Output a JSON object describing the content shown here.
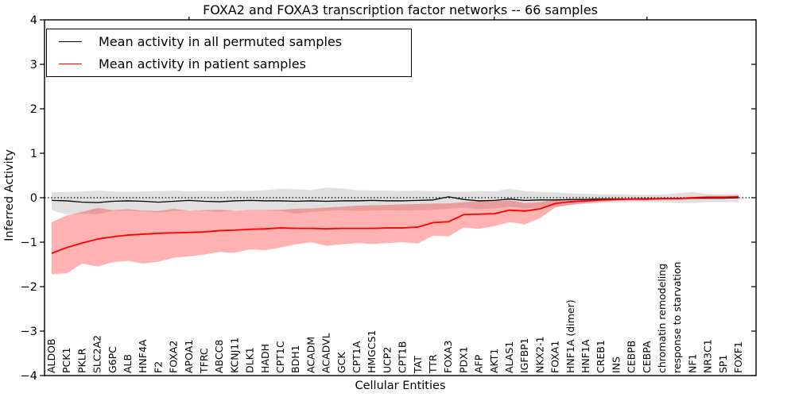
{
  "chart_data": {
    "type": "line",
    "title": "FOXA2 and FOXA3 transcription factor networks -- 66 samples",
    "xlabel": "Cellular Entities",
    "ylabel": "Inferred Activity",
    "ylim": [
      -4,
      4
    ],
    "grid": false,
    "legend_position": "upper left",
    "zero_line": {
      "value": 0,
      "style": "dotted",
      "color": "#000000"
    },
    "yticks": [
      "4",
      "3",
      "2",
      "1",
      "0",
      "−1",
      "−2",
      "−3",
      "−4"
    ],
    "ytick_values": [
      4,
      3,
      2,
      1,
      0,
      -1,
      -2,
      -3,
      -4
    ],
    "categories": [
      "ALDOB",
      "PCK1",
      "PKLR",
      "SLC2A2",
      "G6PC",
      "ALB",
      "HNF4A",
      "F2",
      "FOXA2",
      "APOA1",
      "TFRC",
      "ABCC8",
      "KCNJ11",
      "DLK1",
      "HADH",
      "CPT1C",
      "BDH1",
      "ACADM",
      "ACADVL",
      "GCK",
      "CPT1A",
      "HMGCS1",
      "UCP2",
      "CPT1B",
      "TAT",
      "TTR",
      "FOXA3",
      "PDX1",
      "AFP",
      "AKT1",
      "ALAS1",
      "IGFBP1",
      "NKX2-1",
      "FOXA1",
      "HNF1A (dimer)",
      "HNF1A",
      "CREB1",
      "INS",
      "CEBPB",
      "CEBPA",
      "chromatin remodeling",
      "response to starvation",
      "NF1",
      "NR3C1",
      "SP1",
      "FOXF1"
    ],
    "series": [
      {
        "name": "Mean activity in all permuted samples",
        "color": "#000000",
        "line_width": 1.3,
        "values": [
          -0.06,
          -0.07,
          -0.1,
          -0.11,
          -0.08,
          -0.07,
          -0.08,
          -0.1,
          -0.08,
          -0.06,
          -0.08,
          -0.09,
          -0.07,
          -0.06,
          -0.07,
          -0.07,
          -0.08,
          -0.07,
          -0.08,
          -0.07,
          -0.07,
          -0.06,
          -0.07,
          -0.07,
          -0.06,
          -0.05,
          0.02,
          -0.04,
          -0.07,
          -0.06,
          -0.03,
          -0.06,
          -0.05,
          -0.05,
          -0.04,
          -0.04,
          -0.03,
          -0.03,
          -0.03,
          -0.02,
          -0.02,
          -0.02,
          -0.01,
          -0.01,
          -0.01,
          0.0
        ]
      },
      {
        "name": "Mean activity in patient samples",
        "color": "#ff0000",
        "line_width": 1.8,
        "values": [
          -1.25,
          -1.12,
          -1.02,
          -0.93,
          -0.88,
          -0.84,
          -0.82,
          -0.8,
          -0.79,
          -0.78,
          -0.77,
          -0.74,
          -0.73,
          -0.71,
          -0.7,
          -0.68,
          -0.69,
          -0.69,
          -0.7,
          -0.69,
          -0.69,
          -0.69,
          -0.68,
          -0.68,
          -0.66,
          -0.56,
          -0.54,
          -0.38,
          -0.37,
          -0.36,
          -0.28,
          -0.3,
          -0.25,
          -0.13,
          -0.09,
          -0.07,
          -0.05,
          -0.04,
          -0.03,
          -0.03,
          -0.02,
          -0.02,
          0.0,
          0.01,
          0.01,
          0.02
        ]
      }
    ],
    "bands": [
      {
        "for_series": "Mean activity in all permuted samples",
        "color": "#000000",
        "opacity": 0.12,
        "upper": [
          0.12,
          0.13,
          0.14,
          0.16,
          0.14,
          0.13,
          0.14,
          0.15,
          0.16,
          0.14,
          0.15,
          0.14,
          0.16,
          0.15,
          0.17,
          0.2,
          0.19,
          0.17,
          0.23,
          0.21,
          0.17,
          0.16,
          0.16,
          0.15,
          0.16,
          0.15,
          0.14,
          0.13,
          0.15,
          0.14,
          0.2,
          0.15,
          0.13,
          0.12,
          0.1,
          0.09,
          0.08,
          0.08,
          0.07,
          0.07,
          0.07,
          0.1,
          0.13,
          0.08,
          0.08,
          0.08
        ],
        "lower": [
          -0.28,
          -0.38,
          -0.36,
          -0.37,
          -0.3,
          -0.29,
          -0.31,
          -0.33,
          -0.3,
          -0.28,
          -0.3,
          -0.32,
          -0.28,
          -0.27,
          -0.29,
          -0.3,
          -0.36,
          -0.32,
          -0.3,
          -0.28,
          -0.3,
          -0.29,
          -0.28,
          -0.29,
          -0.28,
          -0.27,
          -0.25,
          -0.22,
          -0.26,
          -0.24,
          -0.2,
          -0.24,
          -0.22,
          -0.2,
          -0.16,
          -0.14,
          -0.12,
          -0.11,
          -0.1,
          -0.1,
          -0.1,
          -0.12,
          -0.12,
          -0.1,
          -0.1,
          -0.1
        ]
      },
      {
        "for_series": "Mean activity in patient samples",
        "color": "#ff0000",
        "opacity": 0.3,
        "upper": [
          -0.55,
          -0.4,
          -0.32,
          -0.23,
          -0.28,
          -0.26,
          -0.29,
          -0.3,
          -0.25,
          -0.29,
          -0.28,
          -0.27,
          -0.29,
          -0.27,
          -0.28,
          -0.27,
          -0.25,
          -0.24,
          -0.22,
          -0.2,
          -0.18,
          -0.17,
          -0.16,
          -0.15,
          -0.14,
          -0.13,
          -0.13,
          -0.1,
          -0.08,
          -0.07,
          -0.06,
          -0.12,
          -0.1,
          -0.05,
          -0.03,
          -0.02,
          -0.02,
          -0.01,
          -0.01,
          -0.01,
          0.0,
          0.0,
          0.02,
          0.04,
          0.04,
          0.05
        ],
        "lower": [
          -1.72,
          -1.7,
          -1.48,
          -1.55,
          -1.45,
          -1.42,
          -1.48,
          -1.44,
          -1.35,
          -1.32,
          -1.28,
          -1.22,
          -1.24,
          -1.16,
          -1.18,
          -1.12,
          -1.05,
          -1.0,
          -1.08,
          -1.05,
          -1.02,
          -1.04,
          -1.02,
          -1.0,
          -1.03,
          -0.85,
          -0.87,
          -0.67,
          -0.7,
          -0.64,
          -0.55,
          -0.6,
          -0.46,
          -0.22,
          -0.16,
          -0.12,
          -0.09,
          -0.07,
          -0.06,
          -0.06,
          -0.05,
          -0.05,
          -0.03,
          -0.02,
          -0.02,
          -0.01
        ]
      }
    ],
    "top_axis_tick_indices": [
      9,
      19,
      29,
      39
    ]
  }
}
